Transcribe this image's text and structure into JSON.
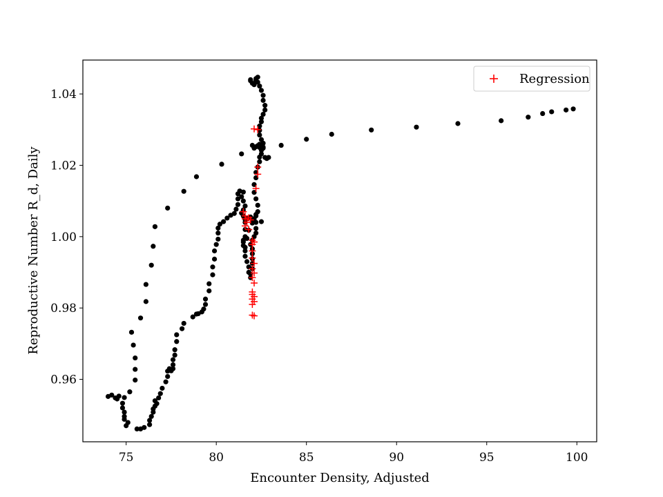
{
  "chart_data": {
    "type": "scatter",
    "title": "",
    "xlabel": "Encounter Density, Adjusted",
    "ylabel": "Reproductive Number R_d, Daily",
    "xlim": [
      72.6,
      101.1
    ],
    "ylim": [
      0.9425,
      1.0495
    ],
    "xticks": [
      75,
      80,
      85,
      90,
      95,
      100
    ],
    "yticks": [
      0.96,
      0.98,
      1.0,
      1.02,
      1.04
    ],
    "xtick_labels": [
      "75",
      "80",
      "85",
      "90",
      "95",
      "100"
    ],
    "ytick_labels": [
      "0.96",
      "0.98",
      "1.00",
      "1.02",
      "1.04"
    ],
    "grid": false,
    "legend": {
      "position": "top-right",
      "entries": [
        "Regression"
      ]
    },
    "series": [
      {
        "name": "Observed",
        "marker": "circle",
        "color": "#000000",
        "in_legend": false,
        "points": [
          [
            99.8,
            1.0358
          ],
          [
            99.4,
            1.0355
          ],
          [
            98.6,
            1.035
          ],
          [
            98.1,
            1.0345
          ],
          [
            97.3,
            1.0335
          ],
          [
            95.8,
            1.0325
          ],
          [
            93.4,
            1.0317
          ],
          [
            91.1,
            1.0307
          ],
          [
            88.6,
            1.0299
          ],
          [
            86.4,
            1.0287
          ],
          [
            85.0,
            1.0273
          ],
          [
            83.6,
            1.0256
          ],
          [
            81.4,
            1.0232
          ],
          [
            80.3,
            1.0203
          ],
          [
            78.9,
            1.0168
          ],
          [
            78.2,
            1.0127
          ],
          [
            77.3,
            1.008
          ],
          [
            76.6,
            1.0028
          ],
          [
            76.5,
            0.9973
          ],
          [
            76.4,
            0.992
          ],
          [
            76.1,
            0.9866
          ],
          [
            76.1,
            0.9818
          ],
          [
            75.8,
            0.9772
          ],
          [
            75.3,
            0.9732
          ],
          [
            75.4,
            0.9696
          ],
          [
            75.5,
            0.966
          ],
          [
            75.5,
            0.9628
          ],
          [
            75.5,
            0.9598
          ],
          [
            75.2,
            0.9565
          ],
          [
            74.9,
            0.9549
          ],
          [
            74.4,
            0.9548
          ],
          [
            74.0,
            0.9552
          ],
          [
            74.2,
            0.9556
          ],
          [
            74.6,
            0.9553
          ],
          [
            74.5,
            0.9545
          ],
          [
            74.8,
            0.9533
          ],
          [
            74.8,
            0.952
          ],
          [
            74.9,
            0.9508
          ],
          [
            74.9,
            0.9496
          ],
          [
            74.9,
            0.9488
          ],
          [
            75.1,
            0.9479
          ],
          [
            75.0,
            0.947
          ],
          [
            75.6,
            0.9461
          ],
          [
            75.8,
            0.9461
          ],
          [
            76.0,
            0.9465
          ],
          [
            76.3,
            0.9473
          ],
          [
            76.3,
            0.9485
          ],
          [
            76.4,
            0.9496
          ],
          [
            76.5,
            0.9508
          ],
          [
            76.5,
            0.9517
          ],
          [
            76.6,
            0.9525
          ],
          [
            76.7,
            0.9532
          ],
          [
            76.6,
            0.954
          ],
          [
            76.8,
            0.9548
          ],
          [
            76.9,
            0.956
          ],
          [
            77.0,
            0.9575
          ],
          [
            77.2,
            0.9593
          ],
          [
            77.3,
            0.9608
          ],
          [
            77.3,
            0.9623
          ],
          [
            77.4,
            0.963
          ],
          [
            77.5,
            0.9624
          ],
          [
            77.6,
            0.963
          ],
          [
            77.6,
            0.9641
          ],
          [
            77.6,
            0.9655
          ],
          [
            77.7,
            0.9668
          ],
          [
            77.7,
            0.9683
          ],
          [
            77.8,
            0.9706
          ],
          [
            77.8,
            0.9725
          ],
          [
            78.1,
            0.9742
          ],
          [
            78.2,
            0.9757
          ],
          [
            78.7,
            0.9775
          ],
          [
            78.9,
            0.9783
          ],
          [
            79.0,
            0.9784
          ],
          [
            79.2,
            0.9789
          ],
          [
            79.3,
            0.9797
          ],
          [
            79.4,
            0.981
          ],
          [
            79.4,
            0.9825
          ],
          [
            79.6,
            0.9848
          ],
          [
            79.6,
            0.9868
          ],
          [
            79.8,
            0.9893
          ],
          [
            79.8,
            0.9915
          ],
          [
            79.9,
            0.9937
          ],
          [
            79.9,
            0.996
          ],
          [
            80.0,
            0.9978
          ],
          [
            80.1,
            0.9993
          ],
          [
            80.1,
            1.001
          ],
          [
            80.1,
            1.0024
          ],
          [
            80.2,
            1.0035
          ],
          [
            80.4,
            1.0042
          ],
          [
            80.6,
            1.0052
          ],
          [
            80.8,
            1.006
          ],
          [
            81.0,
            1.0065
          ],
          [
            81.1,
            1.0077
          ],
          [
            81.2,
            1.009
          ],
          [
            81.2,
            1.0106
          ],
          [
            81.2,
            1.012
          ],
          [
            81.3,
            1.0128
          ],
          [
            81.5,
            1.0125
          ],
          [
            81.4,
            1.0112
          ],
          [
            81.5,
            1.01
          ],
          [
            81.6,
            1.0086
          ],
          [
            81.5,
            1.0075
          ],
          [
            81.4,
            1.0066
          ],
          [
            81.5,
            1.0058
          ],
          [
            81.6,
            1.0048
          ],
          [
            81.6,
            1.004
          ],
          [
            81.6,
            1.002
          ],
          [
            81.6,
            1.0
          ],
          [
            81.5,
            0.999
          ],
          [
            81.5,
            0.9975
          ],
          [
            81.6,
            0.996
          ],
          [
            81.6,
            0.9945
          ],
          [
            81.7,
            0.993
          ],
          [
            81.8,
            0.9915
          ],
          [
            81.8,
            0.99
          ],
          [
            81.9,
            0.9885
          ],
          [
            81.9,
            0.9895
          ],
          [
            82.0,
            0.991
          ],
          [
            82.0,
            0.9925
          ],
          [
            82.0,
            0.9938
          ],
          [
            82.0,
            0.9952
          ],
          [
            82.0,
            0.9966
          ],
          [
            81.9,
            0.9978
          ],
          [
            82.0,
            0.999
          ],
          [
            82.1,
            1.0
          ],
          [
            82.2,
            1.001
          ],
          [
            82.2,
            1.0023
          ],
          [
            82.2,
            1.004
          ],
          [
            82.2,
            1.0058
          ],
          [
            82.3,
            1.007
          ],
          [
            82.3,
            1.0088
          ],
          [
            82.2,
            1.0106
          ],
          [
            82.1,
            1.0124
          ],
          [
            82.1,
            1.0146
          ],
          [
            82.2,
            1.0165
          ],
          [
            82.2,
            1.018
          ],
          [
            82.3,
            1.0195
          ],
          [
            82.4,
            1.021
          ],
          [
            82.4,
            1.0223
          ],
          [
            82.5,
            1.0232
          ],
          [
            82.5,
            1.0242
          ],
          [
            82.6,
            1.0251
          ],
          [
            82.6,
            1.0262
          ],
          [
            82.5,
            1.0272
          ],
          [
            82.4,
            1.0285
          ],
          [
            82.4,
            1.0298
          ],
          [
            82.4,
            1.031
          ],
          [
            82.5,
            1.0322
          ],
          [
            82.5,
            1.0332
          ],
          [
            82.6,
            1.0343
          ],
          [
            82.7,
            1.0355
          ],
          [
            82.7,
            1.0368
          ],
          [
            82.6,
            1.0382
          ],
          [
            82.6,
            1.0396
          ],
          [
            82.5,
            1.041
          ],
          [
            82.4,
            1.0422
          ],
          [
            82.3,
            1.0433
          ],
          [
            82.2,
            1.0443
          ],
          [
            82.3,
            1.0447
          ],
          [
            82.2,
            1.0438
          ],
          [
            82.1,
            1.0426
          ],
          [
            82.0,
            1.043
          ],
          [
            81.9,
            1.0437
          ],
          [
            81.9,
            1.044
          ],
          [
            82.0,
            1.0256
          ],
          [
            82.1,
            1.0248
          ],
          [
            82.2,
            1.0252
          ],
          [
            82.3,
            1.0255
          ],
          [
            82.4,
            1.025
          ],
          [
            82.6,
            1.0248
          ],
          [
            82.5,
            1.0256
          ],
          [
            82.4,
            1.0259
          ],
          [
            82.7,
            1.0222
          ],
          [
            82.8,
            1.0219
          ],
          [
            82.9,
            1.0222
          ],
          [
            82.5,
            1.0042
          ],
          [
            81.7,
            1.005
          ],
          [
            81.9,
            1.0055
          ],
          [
            82.1,
            1.005
          ],
          [
            82.2,
            1.0062
          ],
          [
            82.0,
            1.0043
          ],
          [
            82.0,
            1.0038
          ],
          [
            81.8,
            1.0018
          ],
          [
            81.7,
            0.9995
          ],
          [
            81.5,
            0.9985
          ],
          [
            81.6,
            0.997
          ]
        ]
      },
      {
        "name": "Regression",
        "marker": "plus",
        "color": "#ff0000",
        "in_legend": true,
        "points": [
          [
            82.1,
            1.0302
          ],
          [
            82.3,
            1.03
          ],
          [
            82.3,
            1.0195
          ],
          [
            82.3,
            1.0175
          ],
          [
            82.2,
            1.0135
          ],
          [
            81.5,
            1.007
          ],
          [
            81.6,
            1.0058
          ],
          [
            81.6,
            1.005
          ],
          [
            81.8,
            1.0053
          ],
          [
            81.9,
            1.0047
          ],
          [
            81.7,
            1.004
          ],
          [
            81.6,
            1.003
          ],
          [
            81.8,
            1.002
          ],
          [
            82.0,
            0.999
          ],
          [
            82.1,
            0.9985
          ],
          [
            82.0,
            0.9978
          ],
          [
            82.0,
            0.996
          ],
          [
            82.0,
            0.994
          ],
          [
            82.1,
            0.9925
          ],
          [
            82.0,
            0.991
          ],
          [
            82.1,
            0.9898
          ],
          [
            82.0,
            0.9885
          ],
          [
            82.1,
            0.987
          ],
          [
            82.0,
            0.9845
          ],
          [
            82.0,
            0.9838
          ],
          [
            82.1,
            0.9832
          ],
          [
            82.0,
            0.9825
          ],
          [
            82.1,
            0.9818
          ],
          [
            82.0,
            0.981
          ],
          [
            82.0,
            0.978
          ],
          [
            82.1,
            0.9778
          ]
        ]
      }
    ]
  }
}
